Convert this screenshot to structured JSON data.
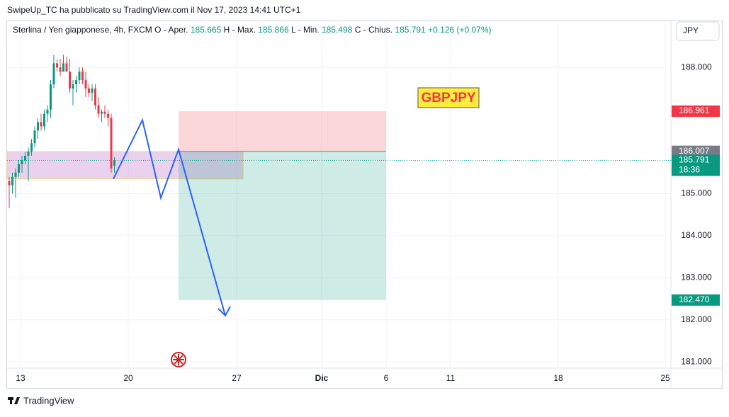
{
  "header": {
    "published": "SwipeUp_TC ha pubblicato su TradingView.com il Nov 17, 2023 14:41 UTC+1",
    "symbol": "Sterlina / Yen giapponese, 4h, FXCM",
    "ohlc": [
      {
        "key": "O",
        "name": "- Aper.",
        "value": "185.665"
      },
      {
        "key": "H",
        "name": "- Max.",
        "value": "185.866"
      },
      {
        "key": "L",
        "name": "- Min.",
        "value": "185.498"
      },
      {
        "key": "C",
        "name": "- Chius.",
        "value": "185.791"
      }
    ],
    "change": "+0.126 (+0.07%)",
    "currency": "JPY"
  },
  "chart": {
    "label": "GBPJPY",
    "ylim": [
      180.85,
      189.1
    ],
    "yticks": [
      {
        "value": 188,
        "label": "188.000"
      },
      {
        "value": 185,
        "label": "185.000"
      },
      {
        "value": 184,
        "label": "184.000"
      },
      {
        "value": 183,
        "label": "183.000"
      },
      {
        "value": 182,
        "label": "182.000"
      },
      {
        "value": 181,
        "label": "181.000"
      }
    ],
    "xticks": [
      "13",
      "20",
      "27",
      "Dic",
      "6",
      "11",
      "18",
      "25"
    ],
    "candles": [
      [
        185.3,
        185.4,
        184.65,
        185.2
      ],
      [
        185.2,
        185.5,
        185.0,
        185.4
      ],
      [
        185.4,
        185.6,
        184.9,
        185.5
      ],
      [
        185.5,
        185.8,
        185.4,
        185.7
      ],
      [
        185.7,
        185.9,
        185.5,
        185.8
      ],
      [
        185.8,
        186.0,
        185.7,
        185.9
      ],
      [
        185.9,
        186.1,
        185.3,
        186.0
      ],
      [
        186.0,
        186.3,
        185.9,
        186.2
      ],
      [
        186.2,
        186.6,
        186.1,
        186.5
      ],
      [
        186.5,
        186.8,
        186.3,
        186.7
      ],
      [
        186.7,
        186.9,
        186.5,
        186.6
      ],
      [
        186.6,
        187.0,
        186.5,
        186.9
      ],
      [
        186.9,
        187.1,
        186.7,
        187.0
      ],
      [
        187.0,
        187.7,
        186.8,
        187.6
      ],
      [
        187.6,
        188.3,
        187.5,
        188.1
      ],
      [
        188.1,
        188.2,
        187.9,
        188.0
      ],
      [
        188.0,
        188.2,
        187.8,
        187.9
      ],
      [
        187.9,
        188.3,
        187.9,
        188.1
      ],
      [
        188.1,
        188.25,
        187.9,
        187.9
      ],
      [
        187.9,
        188.2,
        187.4,
        187.5
      ],
      [
        187.5,
        187.7,
        187.1,
        187.6
      ],
      [
        187.6,
        187.8,
        187.4,
        187.7
      ],
      [
        187.7,
        188.0,
        187.6,
        187.9
      ],
      [
        187.9,
        188.0,
        187.6,
        187.7
      ],
      [
        187.7,
        187.9,
        187.3,
        187.5
      ],
      [
        187.5,
        187.6,
        187.3,
        187.4
      ],
      [
        187.4,
        187.6,
        187.2,
        187.5
      ],
      [
        187.5,
        187.6,
        187.0,
        187.1
      ],
      [
        187.1,
        187.3,
        186.8,
        186.9
      ],
      [
        186.9,
        187.0,
        186.7,
        186.95
      ],
      [
        186.95,
        187.1,
        186.8,
        186.9
      ],
      [
        186.9,
        187.0,
        186.6,
        186.8
      ],
      [
        186.8,
        186.9,
        185.5,
        185.6
      ],
      [
        185.665,
        185.866,
        185.498,
        185.791
      ]
    ],
    "zone": [
      186.0,
      185.35
    ],
    "stop": {
      "value": 186.961,
      "label": "186.961"
    },
    "entry": {
      "value": 186.007,
      "label": "186.007"
    },
    "last": {
      "value": 185.791,
      "label": "185.791",
      "countdown": "18:36"
    },
    "target": {
      "value": 182.47,
      "label": "182.470"
    },
    "path": [
      185.35,
      186.75,
      184.9,
      186.05,
      182.1
    ]
  },
  "footer": {
    "brand": "TradingView"
  }
}
